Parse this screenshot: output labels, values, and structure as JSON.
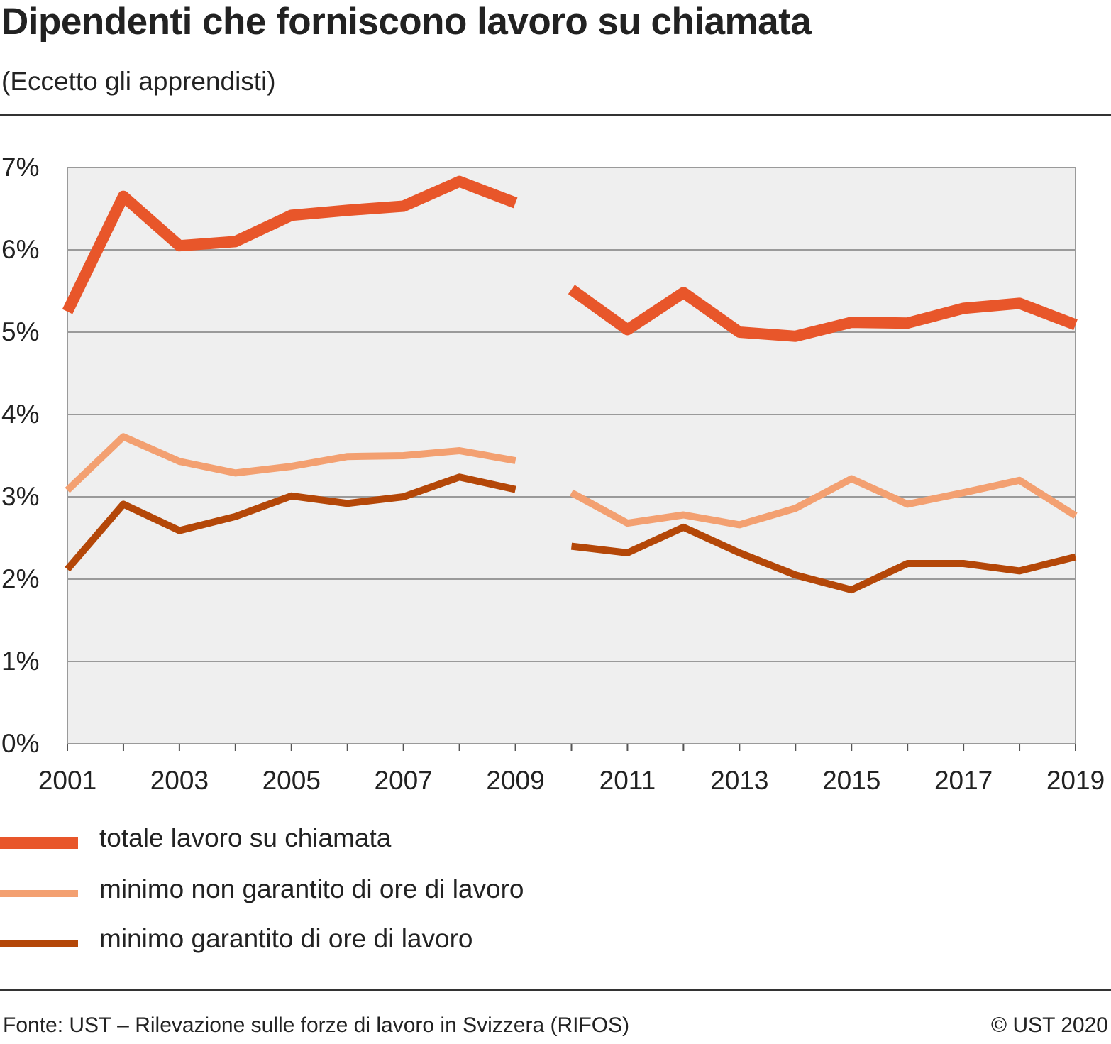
{
  "header": {
    "title": "Dipendenti che forniscono lavoro su chiamata",
    "subtitle": "(Eccetto gli apprendisti)"
  },
  "footer": {
    "source": "Fonte: UST – Rilevazione sulle forze di lavoro in Svizzera (RIFOS)",
    "copyright": "© UST 2020"
  },
  "chart_data": {
    "type": "line",
    "title": "Dipendenti che forniscono lavoro su chiamata",
    "subtitle": "(Eccetto gli apprendisti)",
    "xlabel": "",
    "ylabel": "",
    "x": [
      2001,
      2002,
      2003,
      2004,
      2005,
      2006,
      2007,
      2008,
      2009,
      2010,
      2011,
      2012,
      2013,
      2014,
      2015,
      2016,
      2017,
      2018,
      2019
    ],
    "x_tick_labels": [
      "2001",
      "2003",
      "2005",
      "2007",
      "2009",
      "2011",
      "2013",
      "2015",
      "2017",
      "2019"
    ],
    "y_tick_labels": [
      "0%",
      "1%",
      "2%",
      "3%",
      "4%",
      "5%",
      "6%",
      "7%"
    ],
    "ylim": [
      0,
      7
    ],
    "grid": true,
    "legend_position": "bottom",
    "series": [
      {
        "name": "totale lavoro su chiamata",
        "color": "#e8562a",
        "values": [
          5.25,
          6.65,
          6.05,
          6.1,
          6.42,
          6.48,
          6.53,
          6.83,
          6.57,
          5.52,
          5.03,
          5.48,
          5.0,
          4.95,
          5.12,
          5.11,
          5.29,
          5.35,
          5.09
        ]
      },
      {
        "name": "minimo non garantito di ore di lavoro",
        "color": "#f3a071",
        "values": [
          3.08,
          3.73,
          3.43,
          3.29,
          3.37,
          3.49,
          3.5,
          3.56,
          3.44,
          3.05,
          2.68,
          2.78,
          2.66,
          2.86,
          3.22,
          2.91,
          3.05,
          3.2,
          2.77
        ]
      },
      {
        "name": "minimo garantito di ore di lavoro",
        "color": "#b44708",
        "values": [
          2.12,
          2.91,
          2.59,
          2.76,
          3.01,
          2.92,
          3.0,
          3.24,
          3.09,
          2.4,
          2.32,
          2.63,
          2.32,
          2.05,
          1.87,
          2.19,
          2.19,
          2.1,
          2.27
        ]
      }
    ]
  }
}
